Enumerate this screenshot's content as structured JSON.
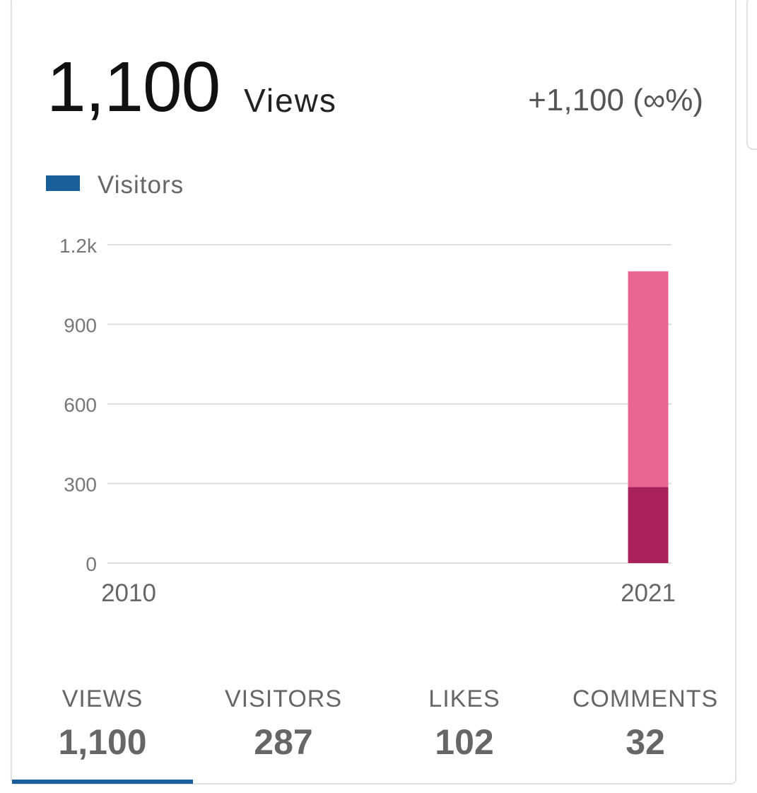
{
  "header": {
    "total": "1,100",
    "unit": "Views",
    "change": "+1,100 (∞%)"
  },
  "legend": {
    "label": "Visitors",
    "color": "#1a5f99"
  },
  "chart_data": {
    "type": "bar",
    "stacked": true,
    "categories": [
      "2010",
      "2021"
    ],
    "series": [
      {
        "values": [
          0,
          287
        ],
        "color": "#a8215a"
      },
      {
        "values": [
          0,
          813
        ],
        "color": "#e86591"
      }
    ],
    "ylim": [
      0,
      1200
    ],
    "yticks": [
      0,
      300,
      600,
      900,
      1200
    ],
    "ytick_labels": [
      "0",
      "300",
      "600",
      "900",
      "1.2k"
    ],
    "grid": true,
    "legend_position": "top-left"
  },
  "tabs": [
    {
      "label": "VIEWS",
      "value": "1,100",
      "active": true
    },
    {
      "label": "VISITORS",
      "value": "287",
      "active": false
    },
    {
      "label": "LIKES",
      "value": "102",
      "active": false
    },
    {
      "label": "COMMENTS",
      "value": "32",
      "active": false
    }
  ]
}
